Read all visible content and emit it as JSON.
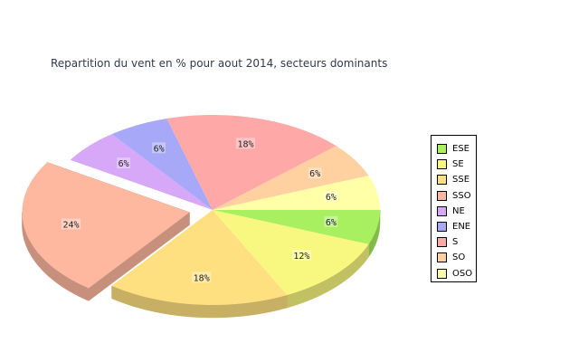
{
  "chart_data": {
    "type": "pie",
    "title": "Repartition du vent en % pour aout 2014, secteurs dominants",
    "slices": [
      {
        "name": "ESE",
        "value": 6,
        "label": "6%",
        "color": "#a8f060",
        "exploded": false
      },
      {
        "name": "SE",
        "value": 12,
        "label": "12%",
        "color": "#f8f880",
        "exploded": false
      },
      {
        "name": "SSE",
        "value": 18,
        "label": "18%",
        "color": "#ffe080",
        "exploded": false
      },
      {
        "name": "SSO",
        "value": 24,
        "label": "24%",
        "color": "#ffb8a0",
        "exploded": true
      },
      {
        "name": "NE",
        "value": 6,
        "label": "6%",
        "color": "#d8a8f8",
        "exploded": false
      },
      {
        "name": "ENE",
        "value": 6,
        "label": "6%",
        "color": "#a8a8f8",
        "exploded": false
      },
      {
        "name": "S",
        "value": 18,
        "label": "18%",
        "color": "#ffa8a8",
        "exploded": false
      },
      {
        "name": "SO",
        "value": 6,
        "label": "6%",
        "color": "#ffd0a0",
        "exploded": false
      },
      {
        "name": "OSO",
        "value": 6,
        "label": "6%",
        "color": "#ffff a8",
        "exploded": false
      }
    ],
    "legend": "right"
  }
}
